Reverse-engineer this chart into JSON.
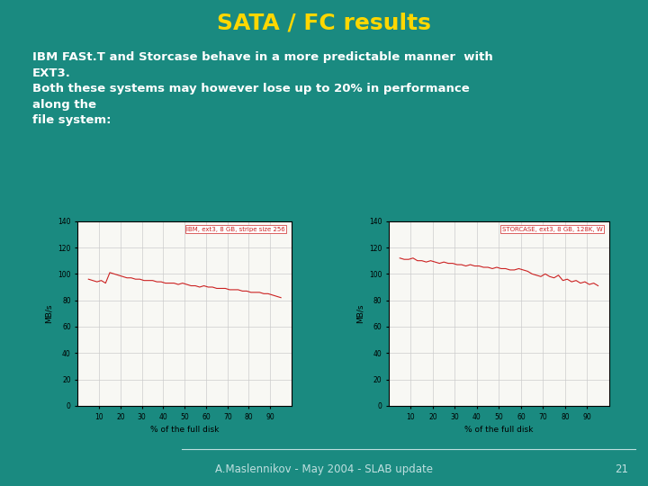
{
  "title": "SATA / FC results",
  "title_color": "#FFD700",
  "background_color": "#1a8a80",
  "body_text_color": "#FFFFFF",
  "body_lines": [
    "IBM FASt.T and Storcase behave in a more predictable manner  with",
    "EXT3.",
    "Both these systems may however lose up to 20% in performance",
    "along the",
    "file system:"
  ],
  "footer_text": "A.Maslennikov - May 2004 - SLAB update",
  "footer_number": "21",
  "footer_color": "#c0e0e0",
  "chart1_label": "IBM, ext3, 8 GB, stripe size 256",
  "chart1_color": "#cc2222",
  "chart2_label": "STORCASE, ext3, 8 GB, 128K, W",
  "chart2_color": "#cc2222",
  "chart_bg": "#f8f8f4",
  "chart_grid_color": "#cccccc",
  "chart_ylabel": "MB/s",
  "chart_xlabel": "% of the full disk",
  "chart1_x": [
    5,
    7,
    9,
    11,
    13,
    15,
    17,
    19,
    21,
    23,
    25,
    27,
    29,
    31,
    33,
    35,
    37,
    39,
    41,
    43,
    45,
    47,
    49,
    51,
    53,
    55,
    57,
    59,
    61,
    63,
    65,
    67,
    69,
    71,
    73,
    75,
    77,
    79,
    81,
    83,
    85,
    87,
    89,
    91,
    93,
    95
  ],
  "chart1_y": [
    96,
    95,
    94,
    95,
    93,
    101,
    100,
    99,
    98,
    97,
    97,
    96,
    96,
    95,
    95,
    95,
    94,
    94,
    93,
    93,
    93,
    92,
    93,
    92,
    91,
    91,
    90,
    91,
    90,
    90,
    89,
    89,
    89,
    88,
    88,
    88,
    87,
    87,
    86,
    86,
    86,
    85,
    85,
    84,
    83,
    82
  ],
  "chart2_x": [
    5,
    7,
    9,
    11,
    13,
    15,
    17,
    19,
    21,
    23,
    25,
    27,
    29,
    31,
    33,
    35,
    37,
    39,
    41,
    43,
    45,
    47,
    49,
    51,
    53,
    55,
    57,
    59,
    61,
    63,
    65,
    67,
    69,
    71,
    73,
    75,
    77,
    79,
    81,
    83,
    85,
    87,
    89,
    91,
    93,
    95
  ],
  "chart2_y": [
    112,
    111,
    111,
    112,
    110,
    110,
    109,
    110,
    109,
    108,
    109,
    108,
    108,
    107,
    107,
    106,
    107,
    106,
    106,
    105,
    105,
    104,
    105,
    104,
    104,
    103,
    103,
    104,
    103,
    102,
    100,
    99,
    98,
    100,
    98,
    97,
    99,
    95,
    96,
    94,
    95,
    93,
    94,
    92,
    93,
    91
  ],
  "ylim": [
    0,
    140
  ],
  "yticks": [
    0,
    20,
    40,
    60,
    80,
    100,
    120,
    140
  ]
}
